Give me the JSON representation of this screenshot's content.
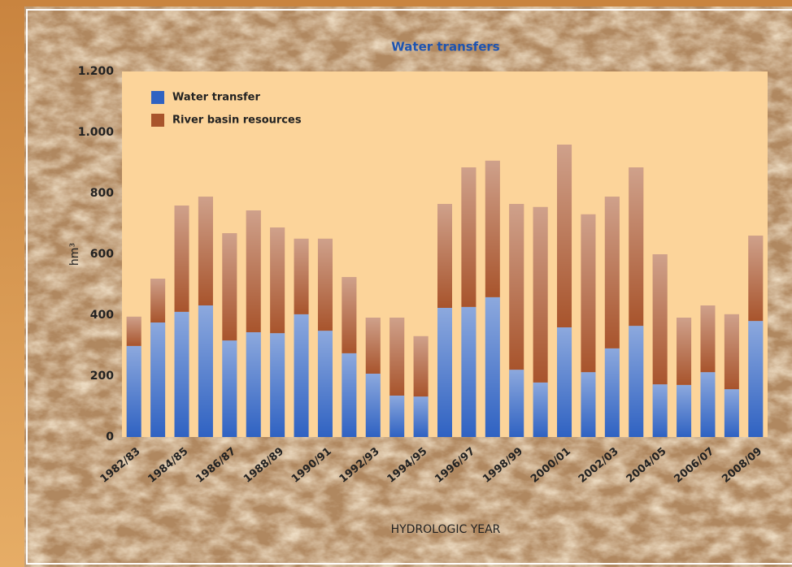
{
  "chart_data": {
    "type": "stacked_bar",
    "title": "Water transfers",
    "y_label": "hm³",
    "x_label": "HYDROLOGIC YEAR",
    "categories": [
      "1982/83",
      null,
      "1984/85",
      null,
      "1986/87",
      null,
      "1988/89",
      null,
      "1990/91",
      null,
      "1992/93",
      null,
      "1994/95",
      null,
      "1996/97",
      null,
      "1998/99",
      null,
      "2000/01",
      null,
      "2002/03",
      null,
      "2004/05",
      null,
      "2006/07",
      null,
      "2008/09"
    ],
    "series": [
      {
        "name": "Water transfer",
        "color": "#2f62c2",
        "values": [
          299,
          376,
          411,
          432,
          317,
          344,
          341,
          403,
          349,
          275,
          208,
          136,
          133,
          424,
          427,
          459,
          221,
          179,
          360,
          213,
          291,
          365,
          173,
          171,
          213,
          157,
          381
        ]
      },
      {
        "name": "River basin resources",
        "color": "#a8542c",
        "values": [
          96,
          144,
          349,
          357,
          352,
          400,
          347,
          248,
          302,
          250,
          184,
          256,
          198,
          341,
          458,
          448,
          544,
          576,
          600,
          518,
          498,
          520,
          427,
          221,
          219,
          246,
          280
        ]
      }
    ],
    "ylim": [
      0,
      1200
    ],
    "yticks": [
      0,
      200,
      400,
      600,
      800,
      {
        "value": 1000,
        "label": "1.000"
      },
      {
        "value": 1200,
        "label": "1.200"
      }
    ],
    "legend": "upper left"
  }
}
